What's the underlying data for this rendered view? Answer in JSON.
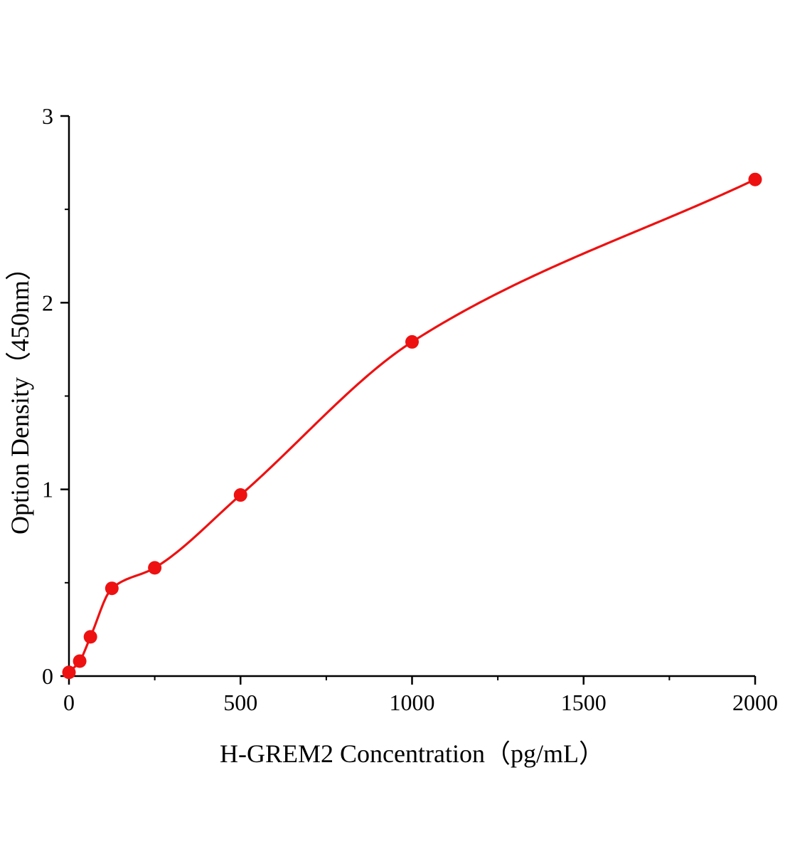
{
  "chart_data": {
    "type": "scatter",
    "title": "",
    "xlabel": "H-GREM2 Concentration（pg/mL）",
    "ylabel": "Option Density（450nm）",
    "x": [
      0,
      31.25,
      62.5,
      125,
      250,
      500,
      1000,
      2000
    ],
    "y": [
      0.02,
      0.08,
      0.21,
      0.47,
      0.58,
      0.97,
      1.79,
      2.66
    ],
    "xlim": [
      0,
      2000
    ],
    "ylim": [
      0,
      3
    ],
    "x_major_ticks": [
      0,
      500,
      1000,
      1500,
      2000
    ],
    "x_minor_ticks": [
      250,
      750,
      1250,
      1750
    ],
    "y_major_ticks": [
      0,
      1,
      2,
      3
    ],
    "y_minor_ticks": [
      0.5,
      1.5,
      2.5
    ],
    "x_tick_labels": [
      "0",
      "500",
      "1000",
      "1500",
      "2000"
    ],
    "y_tick_labels": [
      "0",
      "1",
      "2",
      "3"
    ],
    "point_color": "#ee1111",
    "line_color": "#ee1111",
    "axis_color": "#000000",
    "grid": false,
    "legend_position": "none"
  }
}
